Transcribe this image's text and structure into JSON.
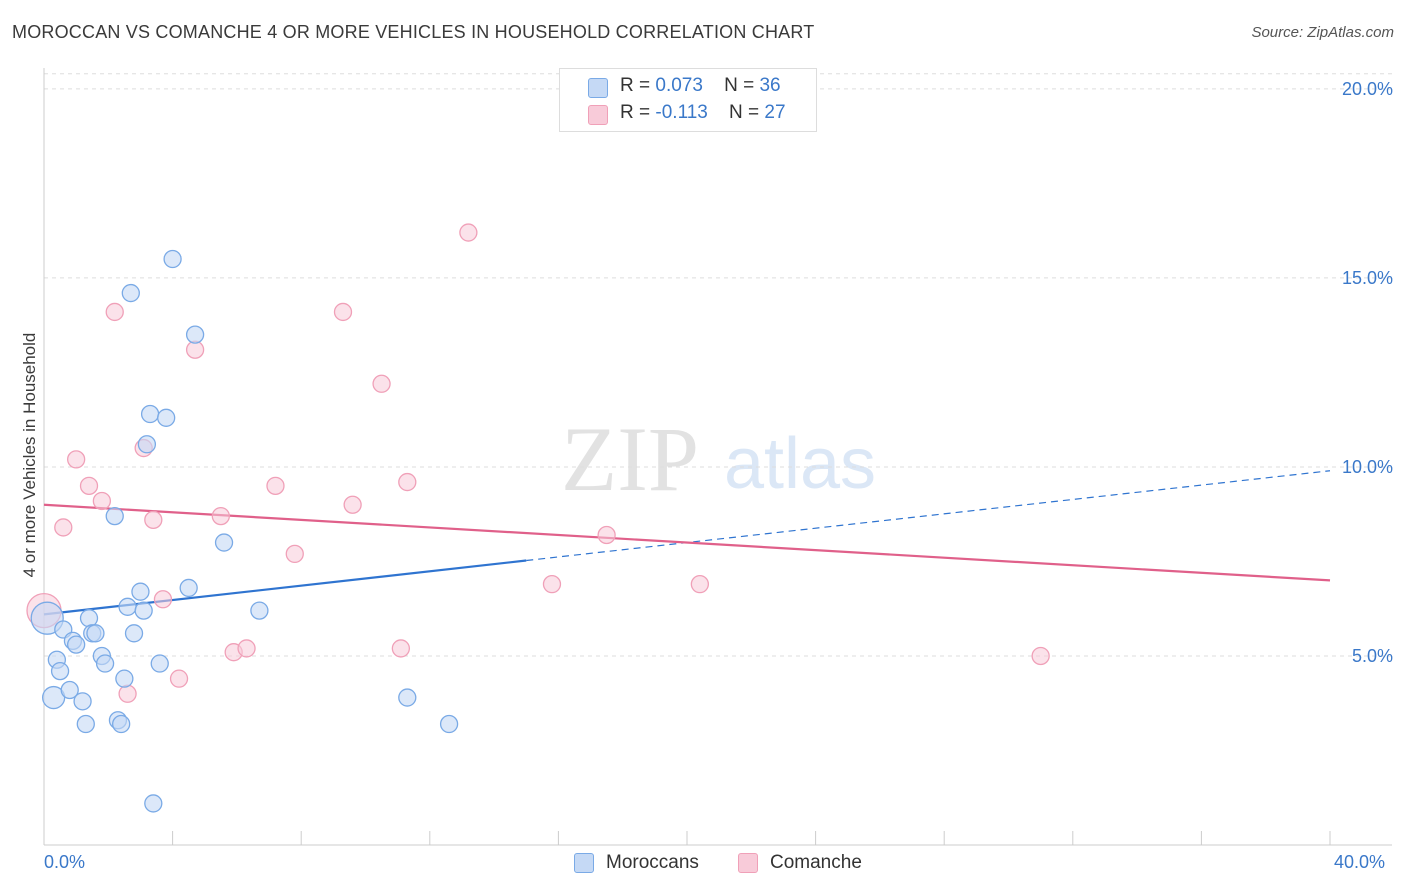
{
  "title": "MOROCCAN VS COMANCHE 4 OR MORE VEHICLES IN HOUSEHOLD CORRELATION CHART",
  "source": "Source: ZipAtlas.com",
  "watermark": {
    "zip": "ZIP",
    "atlas": "atlas"
  },
  "legend": {
    "moroccan": {
      "r_label": "R =",
      "r_value": "0.073",
      "n_label": "N =",
      "n_value": "36"
    },
    "comanche": {
      "r_label": "R =",
      "r_value": "-0.113",
      "n_label": "N =",
      "n_value": "27"
    }
  },
  "chart_data": {
    "type": "scatter",
    "title": "MOROCCAN VS COMANCHE 4 OR MORE VEHICLES IN HOUSEHOLD CORRELATION CHART",
    "xlabel": "",
    "ylabel": "4 or more Vehicles in Household",
    "xlim": [
      0,
      40
    ],
    "ylim": [
      0,
      20.5
    ],
    "x_tick_labels": [
      "0.0%",
      "40.0%"
    ],
    "y_tick_labels": [
      "5.0%",
      "10.0%",
      "15.0%",
      "20.0%"
    ],
    "y_ticks": [
      5,
      10,
      15,
      20
    ],
    "grid": true,
    "legend_position": "top-center",
    "colors": {
      "moroccan": "#7aaae6",
      "moroccan_line": "#2f74d0",
      "comanche": "#f0a0b8",
      "comanche_line": "#e0608a"
    },
    "series": [
      {
        "name": "Moroccans",
        "points": [
          [
            0.1,
            6.0
          ],
          [
            0.3,
            3.9
          ],
          [
            0.4,
            4.9
          ],
          [
            0.5,
            4.6
          ],
          [
            0.6,
            5.7
          ],
          [
            0.8,
            4.1
          ],
          [
            0.9,
            5.4
          ],
          [
            1.0,
            5.3
          ],
          [
            1.2,
            3.8
          ],
          [
            1.3,
            3.2
          ],
          [
            1.4,
            6.0
          ],
          [
            1.5,
            5.6
          ],
          [
            1.6,
            5.6
          ],
          [
            1.8,
            5.0
          ],
          [
            1.9,
            4.8
          ],
          [
            2.2,
            8.7
          ],
          [
            2.3,
            3.3
          ],
          [
            2.4,
            3.2
          ],
          [
            2.5,
            4.4
          ],
          [
            2.6,
            6.3
          ],
          [
            2.7,
            14.6
          ],
          [
            2.8,
            5.6
          ],
          [
            3.0,
            6.7
          ],
          [
            3.1,
            6.2
          ],
          [
            3.2,
            10.6
          ],
          [
            3.3,
            11.4
          ],
          [
            3.4,
            1.1
          ],
          [
            3.6,
            4.8
          ],
          [
            3.8,
            11.3
          ],
          [
            4.0,
            15.5
          ],
          [
            4.5,
            6.8
          ],
          [
            4.7,
            13.5
          ],
          [
            5.6,
            8.0
          ],
          [
            6.7,
            6.2
          ],
          [
            11.3,
            3.9
          ],
          [
            12.6,
            3.2
          ]
        ],
        "trend": {
          "x": [
            0,
            40
          ],
          "y": [
            6.1,
            9.9
          ],
          "solid_until": 15
        }
      },
      {
        "name": "Comanche",
        "points": [
          [
            0.0,
            6.2
          ],
          [
            0.6,
            8.4
          ],
          [
            1.0,
            10.2
          ],
          [
            1.4,
            9.5
          ],
          [
            1.8,
            9.1
          ],
          [
            2.2,
            14.1
          ],
          [
            2.6,
            4.0
          ],
          [
            3.1,
            10.5
          ],
          [
            3.4,
            8.6
          ],
          [
            3.7,
            6.5
          ],
          [
            4.2,
            4.4
          ],
          [
            4.7,
            13.1
          ],
          [
            5.5,
            8.7
          ],
          [
            5.9,
            5.1
          ],
          [
            6.3,
            5.2
          ],
          [
            7.2,
            9.5
          ],
          [
            7.8,
            7.7
          ],
          [
            9.3,
            14.1
          ],
          [
            9.6,
            9.0
          ],
          [
            10.5,
            12.2
          ],
          [
            11.1,
            5.2
          ],
          [
            11.3,
            9.6
          ],
          [
            13.2,
            16.2
          ],
          [
            15.8,
            6.9
          ],
          [
            17.5,
            8.2
          ],
          [
            20.4,
            6.9
          ],
          [
            31.0,
            5.0
          ]
        ],
        "trend": {
          "x": [
            0,
            40
          ],
          "y": [
            9.0,
            7.0
          ]
        }
      }
    ]
  },
  "axis": {
    "ylabel": "4 or more Vehicles in Household",
    "x_min_label": "0.0%",
    "x_max_label": "40.0%"
  },
  "bottom_legend": {
    "moroccans": "Moroccans",
    "comanche": "Comanche"
  }
}
